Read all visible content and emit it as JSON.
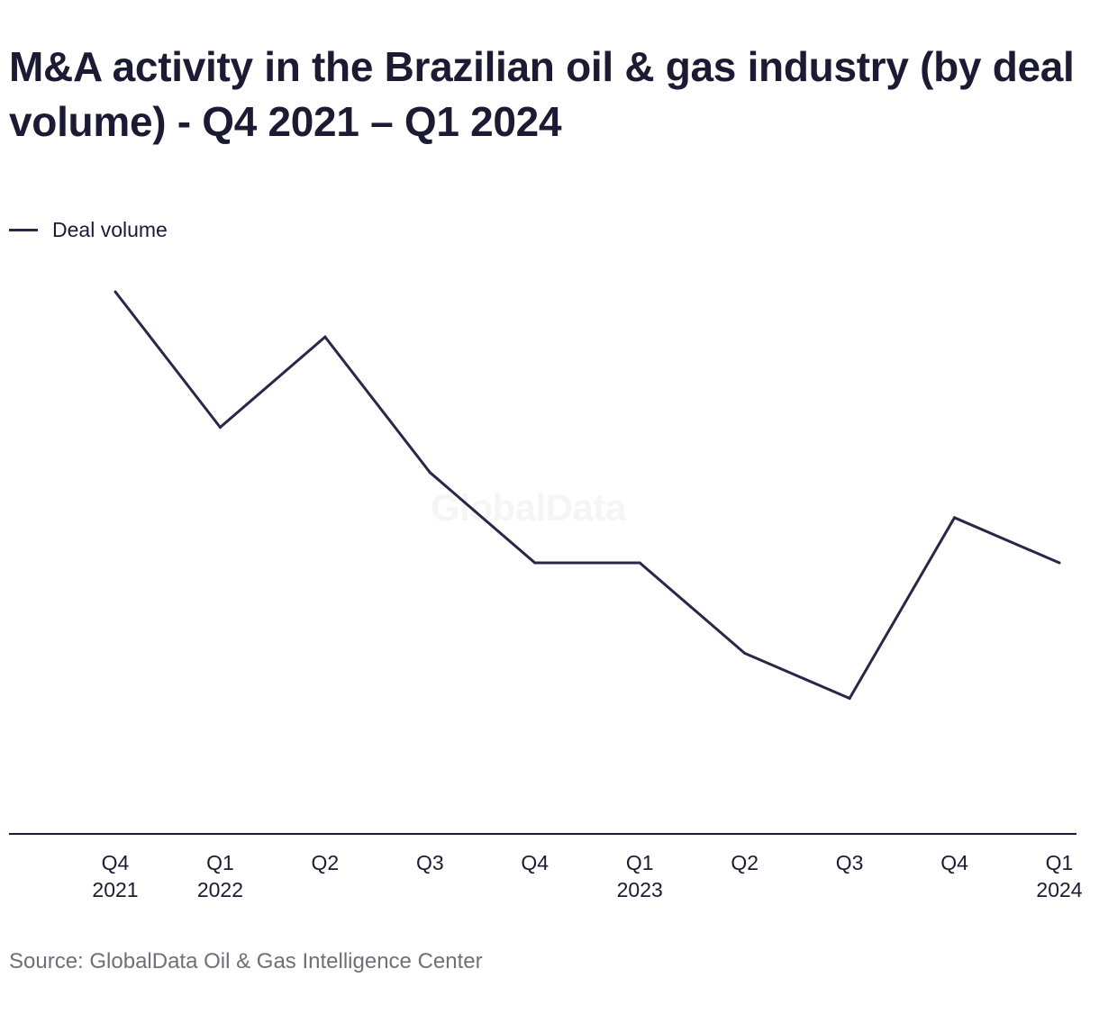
{
  "chart_data": {
    "type": "line",
    "title": "M&A activity in the Brazilian oil & gas industry (by deal volume) - Q4 2021 – Q1 2024",
    "categories": [
      "Q4",
      "Q1",
      "Q2",
      "Q3",
      "Q4",
      "Q1",
      "Q2",
      "Q3",
      "Q4",
      "Q1"
    ],
    "category_years": [
      "2021",
      "2022",
      "",
      "",
      "",
      "2023",
      "",
      "",
      "",
      "2024"
    ],
    "series": [
      {
        "name": "Deal volume",
        "color": "#2f2448",
        "values": [
          12,
          9,
          11,
          8,
          6,
          6,
          4,
          3,
          7,
          6
        ]
      }
    ],
    "ylim": [
      0,
      12
    ],
    "y_axis_shown": false,
    "grid": false,
    "legend_position": "top-left",
    "watermark": "GlobalData",
    "source": "Source: GlobalData Oil & Gas Intelligence Center"
  }
}
